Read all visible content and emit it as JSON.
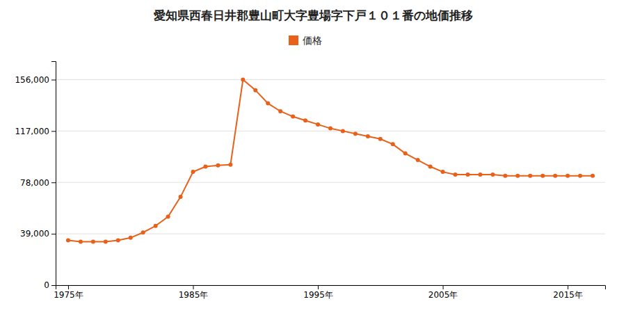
{
  "chart_data": {
    "type": "line",
    "title": "愛知県西春日井郡豊山町大字豊場字下戸１０１番の地価推移",
    "x": [
      1975,
      1976,
      1977,
      1978,
      1979,
      1980,
      1981,
      1982,
      1983,
      1984,
      1985,
      1986,
      1987,
      1988,
      1989,
      1990,
      1991,
      1992,
      1993,
      1994,
      1995,
      1996,
      1997,
      1998,
      1999,
      2000,
      2001,
      2002,
      2003,
      2004,
      2005,
      2006,
      2007,
      2008,
      2009,
      2010,
      2011,
      2012,
      2013,
      2014,
      2015,
      2016,
      2017
    ],
    "series": [
      {
        "name": "価格",
        "color": "#e8601a",
        "marker": "circle",
        "values": [
          34000,
          33000,
          33000,
          33000,
          34000,
          36000,
          40000,
          45000,
          52000,
          67000,
          86000,
          90000,
          91000,
          91500,
          156000,
          148000,
          138000,
          132000,
          128000,
          125000,
          122000,
          119000,
          117000,
          115000,
          113000,
          111000,
          107000,
          100000,
          95000,
          90000,
          86000,
          84000,
          84000,
          84000,
          84000,
          83000,
          83000,
          83000,
          83000,
          83000,
          83000,
          83000,
          83000
        ]
      }
    ],
    "xlim": [
      1974,
      2018
    ],
    "xticks": [
      {
        "value": 1975,
        "label": "1975年"
      },
      {
        "value": 1985,
        "label": "1985年"
      },
      {
        "value": 1995,
        "label": "1995年"
      },
      {
        "value": 2005,
        "label": "2005年"
      },
      {
        "value": 2015,
        "label": "2015年"
      }
    ],
    "ylim": [
      0,
      170000
    ],
    "yticks": [
      0,
      {
        "value": 39000,
        "label": "39,000"
      },
      {
        "value": 78000,
        "label": "78,000"
      },
      {
        "value": 117000,
        "label": "117,000"
      },
      {
        "value": 156000,
        "label": "156,000"
      }
    ],
    "grid": true,
    "legend": "top"
  }
}
